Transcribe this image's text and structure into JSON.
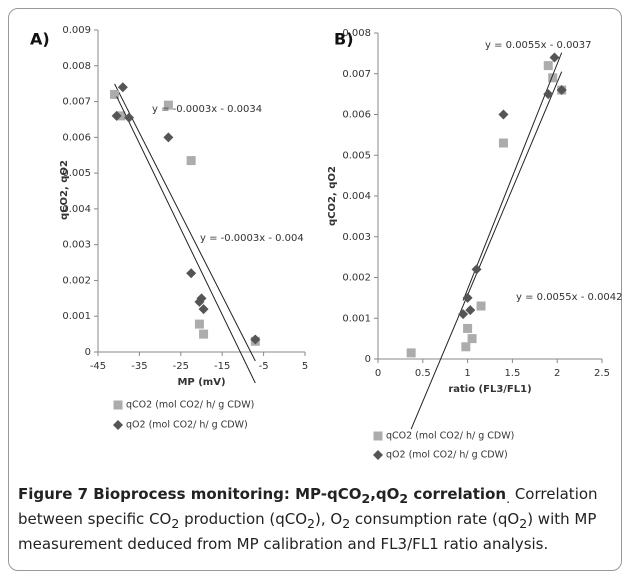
{
  "chart_data": [
    {
      "type": "scatter",
      "panel": "A)",
      "x_label": "MP (mV)",
      "y_label": "qCO2, qO2",
      "xlim": [
        -45,
        5
      ],
      "xticks": [
        -45,
        -35,
        -25,
        -15,
        -5,
        5
      ],
      "ylim": [
        0,
        0.009
      ],
      "yticks": [
        0,
        0.001,
        0.002,
        0.003,
        0.004,
        0.005,
        0.006,
        0.007,
        0.008,
        0.009
      ],
      "annotations": [
        "y = -0.0003x - 0.0034",
        "y = -0.0003x - 0.004"
      ],
      "series": [
        {
          "name": "qCO2 (mol CO2/ h/ g CDW)",
          "color": "#acacac",
          "marker": "square",
          "x": [
            -41,
            -39.5,
            -28,
            -22.5,
            -20.5,
            -19.5,
            -7
          ],
          "values": [
            0.0072,
            0.0066,
            0.0069,
            0.00535,
            0.00078,
            0.0005,
            0.0003
          ]
        },
        {
          "name": "qO2 (mol CO2/ h/ g CDW)",
          "color": "#555555",
          "marker": "diamond",
          "x": [
            -40.5,
            -39,
            -37.5,
            -28,
            -22.5,
            -20.5,
            -20,
            -19.5,
            -7
          ],
          "values": [
            0.0066,
            0.0074,
            0.00655,
            0.006,
            0.0022,
            0.0014,
            0.0015,
            0.0012,
            0.00035
          ]
        }
      ]
    },
    {
      "type": "scatter",
      "panel": "B)",
      "x_label": "ratio (FL3/FL1)",
      "y_label": "qCO2, qO2",
      "xlim": [
        0,
        2.5
      ],
      "xticks": [
        0,
        0.5,
        1,
        1.5,
        2,
        2.5
      ],
      "ylim": [
        0,
        0.008
      ],
      "yticks": [
        0,
        0.001,
        0.002,
        0.003,
        0.004,
        0.005,
        0.006,
        0.007,
        0.008
      ],
      "annotations": [
        "y = 0.0055x - 0.0037",
        "y = 0.0055x - 0.0042"
      ],
      "series": [
        {
          "name": "qCO2 (mol CO2/ h/ g CDW)",
          "color": "#acacac",
          "marker": "square",
          "x": [
            0.37,
            0.98,
            1.0,
            1.05,
            1.15,
            1.4,
            1.9,
            1.95,
            2.05
          ],
          "values": [
            0.00015,
            0.0003,
            0.00075,
            0.0005,
            0.0013,
            0.0053,
            0.0072,
            0.0069,
            0.0066
          ]
        },
        {
          "name": "qO2 (mol CO2/ h/ g CDW)",
          "color": "#555555",
          "marker": "diamond",
          "x": [
            0.95,
            1.0,
            1.03,
            1.1,
            1.4,
            1.9,
            1.97,
            2.05
          ],
          "values": [
            0.0011,
            0.0015,
            0.0012,
            0.0022,
            0.006,
            0.0065,
            0.0074,
            0.0066
          ]
        }
      ]
    }
  ],
  "caption": {
    "title": [
      "Figure 7 Bioprocess monitoring: MP-qCO",
      "2",
      ",qO",
      "2",
      " correlation",
      "."
    ],
    "text": [
      "Correlation between specific CO",
      "2",
      " production (qCO",
      "2",
      "), O",
      "2",
      " consumption rate (qO",
      "2",
      ") with MP measurement deduced from MP calibration and FL3/FL1 ratio analysis."
    ]
  }
}
